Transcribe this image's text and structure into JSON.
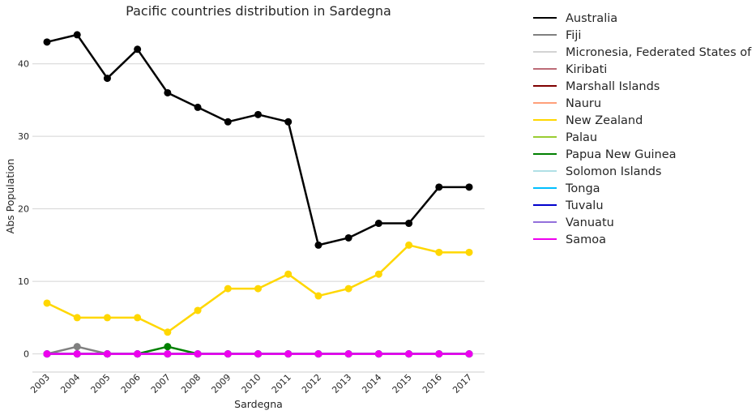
{
  "chart_data": {
    "type": "line",
    "title": "Pacific countries distribution in Sardegna",
    "xlabel": "Sardegna",
    "ylabel": "Abs Population",
    "x": [
      "2003",
      "2004",
      "2005",
      "2006",
      "2007",
      "2008",
      "2009",
      "2010",
      "2011",
      "2012",
      "2013",
      "2014",
      "2015",
      "2016",
      "2017"
    ],
    "ylim": [
      -2.5,
      46
    ],
    "yticks": [
      0,
      10,
      20,
      30,
      40
    ],
    "grid": "horizontal",
    "legend_position": "outside-right",
    "series": [
      {
        "name": "Australia",
        "color": "#000000",
        "values": [
          43,
          44,
          38,
          42,
          36,
          34,
          32,
          33,
          32,
          15,
          16,
          18,
          18,
          23,
          23
        ]
      },
      {
        "name": "Fiji",
        "color": "#808080",
        "values": [
          0,
          1,
          0,
          0,
          0,
          0,
          0,
          0,
          0,
          0,
          0,
          0,
          0,
          0,
          0
        ]
      },
      {
        "name": "Micronesia, Federated States of",
        "color": "#d3d3d3",
        "values": [
          0,
          0,
          0,
          0,
          0,
          0,
          0,
          0,
          0,
          0,
          0,
          0,
          0,
          0,
          0
        ]
      },
      {
        "name": "Kiribati",
        "color": "#bc6b77",
        "values": [
          0,
          0,
          0,
          0,
          0,
          0,
          0,
          0,
          0,
          0,
          0,
          0,
          0,
          0,
          0
        ]
      },
      {
        "name": "Marshall Islands",
        "color": "#800000",
        "values": [
          0,
          0,
          0,
          0,
          0,
          0,
          0,
          0,
          0,
          0,
          0,
          0,
          0,
          0,
          0
        ]
      },
      {
        "name": "Nauru",
        "color": "#ffa07a",
        "values": [
          0,
          0,
          0,
          0,
          0,
          0,
          0,
          0,
          0,
          0,
          0,
          0,
          0,
          0,
          0
        ]
      },
      {
        "name": "New Zealand",
        "color": "#ffd700",
        "values": [
          7,
          5,
          5,
          5,
          3,
          6,
          9,
          9,
          11,
          8,
          9,
          11,
          15,
          14,
          14
        ]
      },
      {
        "name": "Palau",
        "color": "#9acd32",
        "values": [
          0,
          0,
          0,
          0,
          0,
          0,
          0,
          0,
          0,
          0,
          0,
          0,
          0,
          0,
          0
        ]
      },
      {
        "name": "Papua New Guinea",
        "color": "#008000",
        "values": [
          0,
          0,
          0,
          0,
          1,
          0,
          0,
          0,
          0,
          0,
          0,
          0,
          0,
          0,
          0
        ]
      },
      {
        "name": "Solomon Islands",
        "color": "#b0e0e6",
        "values": [
          0,
          0,
          0,
          0,
          0,
          0,
          0,
          0,
          0,
          0,
          0,
          0,
          0,
          0,
          0
        ]
      },
      {
        "name": "Tonga",
        "color": "#00bfff",
        "values": [
          0,
          0,
          0,
          0,
          0,
          0,
          0,
          0,
          0,
          0,
          0,
          0,
          0,
          0,
          0
        ]
      },
      {
        "name": "Tuvalu",
        "color": "#0000cd",
        "values": [
          0,
          0,
          0,
          0,
          0,
          0,
          0,
          0,
          0,
          0,
          0,
          0,
          0,
          0,
          0
        ]
      },
      {
        "name": "Vanuatu",
        "color": "#9370db",
        "values": [
          0,
          0,
          0,
          0,
          0,
          0,
          0,
          0,
          0,
          0,
          0,
          0,
          0,
          0,
          0
        ]
      },
      {
        "name": "Samoa",
        "color": "#ee00ee",
        "values": [
          0,
          0,
          0,
          0,
          0,
          0,
          0,
          0,
          0,
          0,
          0,
          0,
          0,
          0,
          0
        ]
      }
    ]
  }
}
